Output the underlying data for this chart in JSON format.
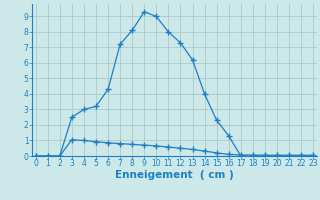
{
  "line1_x": [
    0,
    1,
    2,
    3,
    4,
    5,
    6,
    7,
    8,
    9,
    10,
    11,
    12,
    13,
    14,
    15,
    16,
    17,
    18,
    19,
    20,
    21,
    22,
    23
  ],
  "line1_y": [
    0,
    0,
    0,
    2.5,
    3.0,
    3.2,
    4.3,
    7.2,
    8.1,
    9.3,
    9.0,
    8.0,
    7.3,
    6.2,
    4.0,
    2.3,
    1.3,
    0.0,
    0.0,
    0.0,
    0.0,
    0.0,
    0.0,
    0.0
  ],
  "line2_x": [
    0,
    1,
    2,
    3,
    4,
    5,
    6,
    7,
    8,
    9,
    10,
    11,
    12,
    13,
    14,
    15,
    16,
    17,
    18,
    19,
    20,
    21,
    22,
    23
  ],
  "line2_y": [
    0,
    0,
    0,
    1.05,
    1.0,
    0.92,
    0.85,
    0.8,
    0.75,
    0.7,
    0.65,
    0.58,
    0.5,
    0.42,
    0.32,
    0.2,
    0.1,
    0.07,
    0.06,
    0.05,
    0.05,
    0.05,
    0.05,
    0.05
  ],
  "line_color": "#1e7fc4",
  "bg_color": "#cce8e8",
  "grid_color": "#aacaca",
  "xlabel": "Enneigement  ( cm )",
  "ylabel_ticks": [
    "0",
    "1",
    "2",
    "3",
    "4",
    "5",
    "6",
    "7",
    "8",
    "9"
  ],
  "xlim": [
    -0.3,
    23.3
  ],
  "ylim": [
    0,
    9.8
  ],
  "marker": "+",
  "markersize": 4,
  "linewidth": 0.9,
  "xlabel_color": "#1e7fc4",
  "xlabel_fontsize": 7.5,
  "tick_color": "#1e7fc4",
  "tick_fontsize": 5.5
}
